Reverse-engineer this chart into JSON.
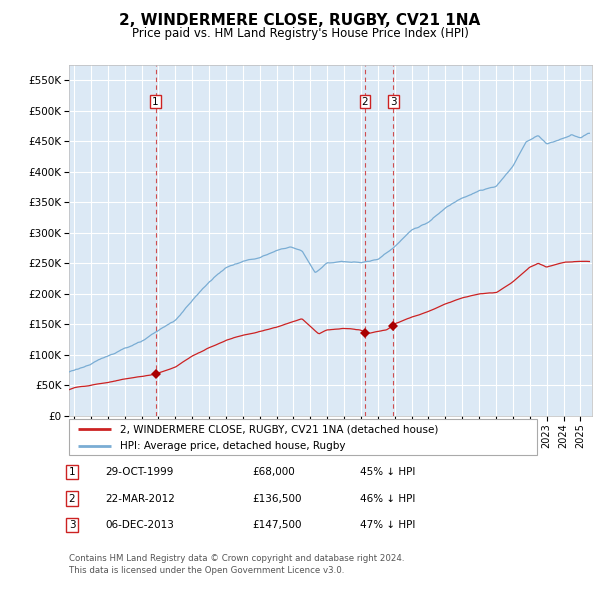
{
  "title": "2, WINDERMERE CLOSE, RUGBY, CV21 1NA",
  "subtitle": "Price paid vs. HM Land Registry's House Price Index (HPI)",
  "title_fontsize": 11,
  "subtitle_fontsize": 8.5,
  "ylim": [
    0,
    575000
  ],
  "yticks": [
    0,
    50000,
    100000,
    150000,
    200000,
    250000,
    300000,
    350000,
    400000,
    450000,
    500000,
    550000
  ],
  "ytick_labels": [
    "£0",
    "£50K",
    "£100K",
    "£150K",
    "£200K",
    "£250K",
    "£300K",
    "£350K",
    "£400K",
    "£450K",
    "£500K",
    "£550K"
  ],
  "xlim_start": 1994.7,
  "xlim_end": 2025.7,
  "background_color": "#dce9f5",
  "grid_color": "#ffffff",
  "hpi_line_color": "#7aadd4",
  "price_line_color": "#cc2222",
  "dashed_line_color": "#cc3333",
  "transaction_color": "#aa0000",
  "legend_label_price": "2, WINDERMERE CLOSE, RUGBY, CV21 1NA (detached house)",
  "legend_label_hpi": "HPI: Average price, detached house, Rugby",
  "transactions": [
    {
      "id": 1,
      "date_x": 1999.83,
      "price": 68000,
      "label": "29-OCT-1999",
      "price_str": "£68,000",
      "hpi_pct": "45% ↓ HPI"
    },
    {
      "id": 2,
      "date_x": 2012.23,
      "price": 136500,
      "label": "22-MAR-2012",
      "price_str": "£136,500",
      "hpi_pct": "46% ↓ HPI"
    },
    {
      "id": 3,
      "date_x": 2013.92,
      "price": 147500,
      "label": "06-DEC-2013",
      "price_str": "£147,500",
      "hpi_pct": "47% ↓ HPI"
    }
  ],
  "footer_line1": "Contains HM Land Registry data © Crown copyright and database right 2024.",
  "footer_line2": "This data is licensed under the Open Government Licence v3.0.",
  "table_rows": [
    {
      "id": 1,
      "date": "29-OCT-1999",
      "price": "£68,000",
      "hpi": "45% ↓ HPI"
    },
    {
      "id": 2,
      "date": "22-MAR-2012",
      "price": "£136,500",
      "hpi": "46% ↓ HPI"
    },
    {
      "id": 3,
      "date": "06-DEC-2013",
      "price": "£147,500",
      "hpi": "47% ↓ HPI"
    }
  ]
}
